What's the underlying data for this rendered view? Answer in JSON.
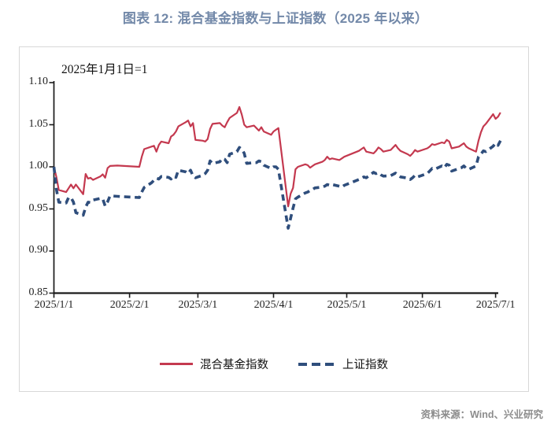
{
  "figure": {
    "title": "图表 12: 混合基金指数与上证指数（2025 年以来）",
    "source_note": "资料来源：Wind、兴业研究"
  },
  "colors": {
    "title_text": "#7389A9",
    "fund_line": "#C4394F",
    "sse_line": "#2F4E7C",
    "axis": "#1A1A1A",
    "frame_border": "#D8D8D8",
    "source_text": "#8C8C8C"
  },
  "chart_data": {
    "type": "line",
    "title": "图表 12: 混合基金指数与上证指数（2025 年以来）",
    "annotation": "2025年1月1日=1",
    "xlabel": "",
    "ylabel": "",
    "ylim": [
      0.85,
      1.1
    ],
    "grid": false,
    "legend_position": "bottom-center",
    "y_tick_labels": [
      "1.10",
      "1.05",
      "1.00",
      "0.95",
      "0.90",
      "0.85"
    ],
    "x_tick_labels": [
      "2025/1/1",
      "2025/2/1",
      "2025/3/1",
      "2025/4/1",
      "2025/5/1",
      "2025/6/1",
      "2025/7/1"
    ],
    "x": [
      "1/1",
      "1/2",
      "1/3",
      "1/6",
      "1/7",
      "1/8",
      "1/9",
      "1/10",
      "1/13",
      "1/14",
      "1/15",
      "1/16",
      "1/17",
      "1/20",
      "1/21",
      "1/22",
      "1/23",
      "1/24",
      "1/27",
      "2/5",
      "2/6",
      "2/7",
      "2/10",
      "2/11",
      "2/12",
      "2/13",
      "2/14",
      "2/17",
      "2/18",
      "2/19",
      "2/20",
      "2/21",
      "2/24",
      "2/25",
      "2/26",
      "2/27",
      "2/28",
      "3/3",
      "3/4",
      "3/5",
      "3/6",
      "3/7",
      "3/10",
      "3/11",
      "3/12",
      "3/13",
      "3/14",
      "3/17",
      "3/18",
      "3/19",
      "3/20",
      "3/21",
      "3/24",
      "3/25",
      "3/26",
      "3/27",
      "3/28",
      "3/31",
      "4/1",
      "4/2",
      "4/3",
      "4/7",
      "4/8",
      "4/9",
      "4/10",
      "4/11",
      "4/14",
      "4/15",
      "4/16",
      "4/17",
      "4/18",
      "4/21",
      "4/22",
      "4/23",
      "4/24",
      "4/25",
      "4/28",
      "4/29",
      "4/30",
      "5/6",
      "5/7",
      "5/8",
      "5/9",
      "5/12",
      "5/13",
      "5/14",
      "5/15",
      "5/16",
      "5/19",
      "5/20",
      "5/21",
      "5/22",
      "5/23",
      "5/26",
      "5/27",
      "5/28",
      "5/29",
      "5/30",
      "6/3",
      "6/4",
      "6/5",
      "6/6",
      "6/9",
      "6/10",
      "6/11",
      "6/12",
      "6/13",
      "6/16",
      "6/17",
      "6/18",
      "6/19",
      "6/20",
      "6/23",
      "6/24",
      "6/25",
      "6/26",
      "6/27",
      "6/30",
      "7/1",
      "7/2",
      "7/3"
    ],
    "series": [
      {
        "name": "混合基金指数",
        "color": "#C4394F",
        "style": "solid",
        "values": [
          1.0,
          0.988,
          0.9725,
          0.97,
          0.9745,
          0.979,
          0.9745,
          0.979,
          0.9675,
          0.9915,
          0.986,
          0.987,
          0.9845,
          0.9885,
          0.991,
          0.987,
          0.9985,
          1.001,
          1.0015,
          1.0,
          1.012,
          1.021,
          1.024,
          1.025,
          1.018,
          1.026,
          1.03,
          1.028,
          1.036,
          1.038,
          1.042,
          1.048,
          1.053,
          1.055,
          1.048,
          1.052,
          1.032,
          1.031,
          1.03,
          1.033,
          1.045,
          1.051,
          1.052,
          1.049,
          1.047,
          1.053,
          1.058,
          1.064,
          1.071,
          1.062,
          1.05,
          1.047,
          1.049,
          1.046,
          1.043,
          1.047,
          1.042,
          1.038,
          1.042,
          1.044,
          1.046,
          0.953,
          0.968,
          0.975,
          0.997,
          1.0,
          1.003,
          1.002,
          0.999,
          1.001,
          1.003,
          1.006,
          1.008,
          1.012,
          1.009,
          1.01,
          1.008,
          1.01,
          1.012,
          1.019,
          1.021,
          1.023,
          1.018,
          1.016,
          1.019,
          1.023,
          1.021,
          1.018,
          1.02,
          1.023,
          1.026,
          1.022,
          1.019,
          1.015,
          1.013,
          1.016,
          1.02,
          1.018,
          1.022,
          1.024,
          1.027,
          1.026,
          1.029,
          1.028,
          1.032,
          1.03,
          1.022,
          1.024,
          1.026,
          1.028,
          1.024,
          1.022,
          1.018,
          1.031,
          1.041,
          1.048,
          1.051,
          1.0625,
          1.057,
          1.0595,
          1.0645
        ]
      },
      {
        "name": "上证指数",
        "color": "#2F4E7C",
        "style": "dashed",
        "values": [
          1.0,
          0.9735,
          0.958,
          0.957,
          0.9635,
          0.9635,
          0.958,
          0.9455,
          0.9425,
          0.952,
          0.958,
          0.9575,
          0.9605,
          0.9625,
          0.962,
          0.9535,
          0.9585,
          0.9655,
          0.965,
          0.9635,
          0.97,
          0.9755,
          0.981,
          0.984,
          0.9865,
          0.9855,
          0.9885,
          0.9875,
          0.9855,
          0.989,
          0.9875,
          0.996,
          0.994,
          0.992,
          0.996,
          0.989,
          0.987,
          0.99,
          0.992,
          0.996,
          1.007,
          1.004,
          1.006,
          1.01,
          1.009,
          1.005,
          1.015,
          1.018,
          1.023,
          1.021,
          1.016,
          1.004,
          1.005,
          1.005,
          1.007,
          1.006,
          1.002,
          0.998,
          1.0,
          1.0,
          0.997,
          0.927,
          0.939,
          0.951,
          0.962,
          0.964,
          0.969,
          0.97,
          0.972,
          0.973,
          0.975,
          0.976,
          0.977,
          0.979,
          0.978,
          0.979,
          0.977,
          0.976,
          0.978,
          0.985,
          0.9865,
          0.988,
          0.987,
          0.9935,
          0.992,
          0.993,
          0.9905,
          0.989,
          0.9895,
          0.991,
          0.9925,
          0.99,
          0.988,
          0.9865,
          0.985,
          0.987,
          0.99,
          0.988,
          0.992,
          0.995,
          0.998,
          0.997,
          1.001,
          0.999,
          1.003,
          1.002,
          0.995,
          0.998,
          0.999,
          1.001,
          0.998,
          0.997,
          1.001,
          1.012,
          1.015,
          1.019,
          1.018,
          1.0245,
          1.028,
          1.0255,
          1.031
        ]
      }
    ]
  }
}
